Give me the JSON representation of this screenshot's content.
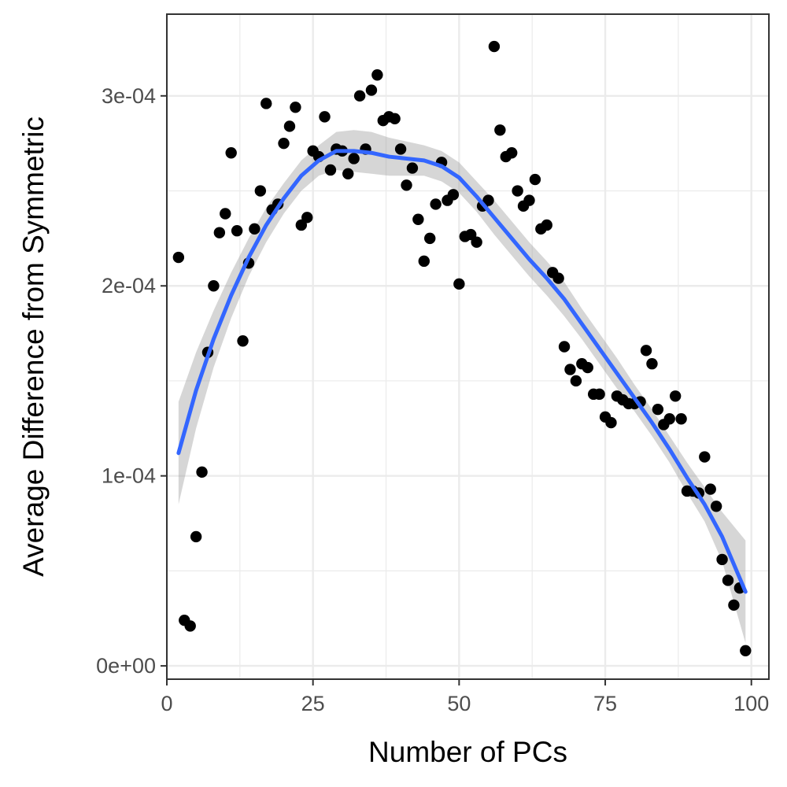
{
  "chart_data": {
    "type": "scatter",
    "title": "",
    "xlabel": "Number of PCs",
    "ylabel": "Average Difference from Symmetric",
    "xlim": [
      0,
      103
    ],
    "ylim": [
      -7e-06,
      0.000343
    ],
    "x_ticks": [
      0,
      25,
      50,
      75,
      100
    ],
    "x_tick_labels": [
      "0",
      "25",
      "50",
      "75",
      "100"
    ],
    "y_ticks": [
      0,
      0.0001,
      0.0002,
      0.0003
    ],
    "y_tick_labels": [
      "0e+00",
      "1e-04",
      "2e-04",
      "3e-04"
    ],
    "grid": true,
    "legend": "none",
    "colors": {
      "points": "#000000",
      "smooth_line": "#3366ff",
      "confidence_band": "#999999",
      "grid": "#ebebeb",
      "panel_border": "#333333",
      "tick_text": "#4d4d4d",
      "axis_title": "#000000"
    },
    "series": [
      {
        "kind": "points",
        "x": [
          2,
          3,
          4,
          5,
          6,
          7,
          8,
          9,
          10,
          11,
          12,
          13,
          14,
          15,
          16,
          17,
          18,
          19,
          20,
          21,
          22,
          23,
          24,
          25,
          26,
          27,
          28,
          29,
          30,
          31,
          32,
          33,
          34,
          35,
          36,
          37,
          38,
          39,
          40,
          41,
          42,
          43,
          44,
          45,
          46,
          47,
          48,
          49,
          50,
          51,
          52,
          53,
          54,
          55,
          56,
          57,
          58,
          59,
          60,
          61,
          62,
          63,
          64,
          65,
          66,
          67,
          68,
          69,
          70,
          71,
          72,
          73,
          74,
          75,
          76,
          77,
          78,
          79,
          80,
          81,
          82,
          83,
          84,
          85,
          86,
          87,
          88,
          89,
          90,
          91,
          92,
          93,
          94,
          95,
          96,
          97,
          98,
          99
        ],
        "y": [
          0.000215,
          2.4e-05,
          2.1e-05,
          6.8e-05,
          0.000102,
          0.000165,
          0.0002,
          0.000228,
          0.000238,
          0.00027,
          0.000229,
          0.000171,
          0.000212,
          0.00023,
          0.00025,
          0.000296,
          0.00024,
          0.000243,
          0.000275,
          0.000284,
          0.000294,
          0.000232,
          0.000236,
          0.000271,
          0.000268,
          0.000289,
          0.000261,
          0.000272,
          0.000271,
          0.000259,
          0.000267,
          0.0003,
          0.000272,
          0.000303,
          0.000311,
          0.000287,
          0.000289,
          0.000288,
          0.000272,
          0.000253,
          0.000262,
          0.000235,
          0.000213,
          0.000225,
          0.000243,
          0.000265,
          0.000245,
          0.000248,
          0.000201,
          0.000226,
          0.000227,
          0.000223,
          0.000242,
          0.000245,
          0.000326,
          0.000282,
          0.000268,
          0.00027,
          0.00025,
          0.000242,
          0.000245,
          0.000256,
          0.00023,
          0.000232,
          0.000207,
          0.000204,
          0.000168,
          0.000156,
          0.00015,
          0.000159,
          0.000157,
          0.000143,
          0.000143,
          0.000131,
          0.000128,
          0.000142,
          0.00014,
          0.000138,
          0.000138,
          0.000139,
          0.000166,
          0.000159,
          0.000135,
          0.000127,
          0.00013,
          0.000142,
          0.00013,
          9.2e-05,
          9.2e-05,
          9.1e-05,
          0.00011,
          9.3e-05,
          8.4e-05,
          5.6e-05,
          4.5e-05,
          3.2e-05,
          4.1e-05,
          8e-06
        ]
      },
      {
        "kind": "smooth",
        "x": [
          2,
          5,
          8,
          11,
          14,
          17,
          20,
          23,
          26,
          29,
          32,
          35,
          38,
          41,
          44,
          47,
          50,
          53,
          56,
          59,
          62,
          65,
          68,
          71,
          74,
          77,
          80,
          83,
          86,
          89,
          92,
          95,
          99
        ],
        "y": [
          0.000112,
          0.000145,
          0.000172,
          0.000195,
          0.000215,
          0.000232,
          0.000246,
          0.000258,
          0.000266,
          0.000271,
          0.000271,
          0.00027,
          0.000268,
          0.000267,
          0.000266,
          0.000263,
          0.000257,
          0.000247,
          0.000236,
          0.000225,
          0.000214,
          0.000204,
          0.000193,
          0.00018,
          0.000167,
          0.000154,
          0.000141,
          0.000128,
          0.000114,
          9.9e-05,
          8.5e-05,
          6.8e-05,
          3.9e-05
        ],
        "se": [
          2.7e-05,
          2e-05,
          1.5e-05,
          1.2e-05,
          1e-05,
          9e-06,
          8e-06,
          8e-06,
          8e-06,
          1e-05,
          1.1e-05,
          1.1e-05,
          1e-05,
          9e-06,
          8e-06,
          8e-06,
          8e-06,
          8e-06,
          9e-06,
          9e-06,
          9e-06,
          9e-06,
          9e-06,
          8e-06,
          8e-06,
          8e-06,
          7e-06,
          7e-06,
          7e-06,
          8e-06,
          9e-06,
          1.3e-05,
          2.7e-05
        ]
      }
    ]
  }
}
